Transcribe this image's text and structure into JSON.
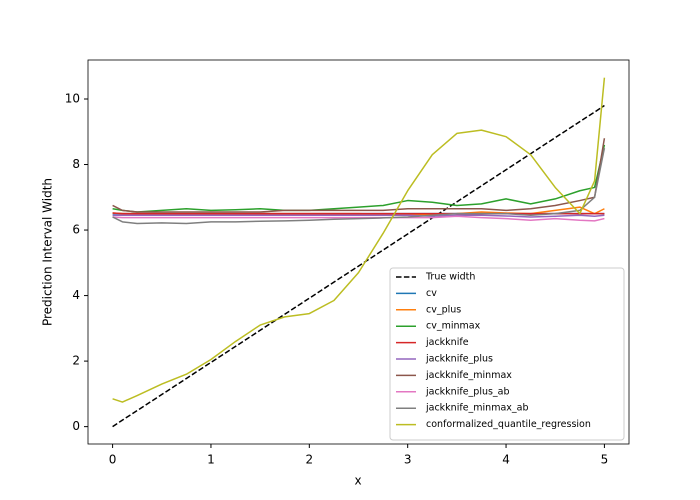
{
  "chart_data": {
    "type": "line",
    "xlabel": "x",
    "ylabel": "Prediction Interval Width",
    "x": [
      0,
      0.1,
      0.25,
      0.5,
      0.75,
      1,
      1.25,
      1.5,
      1.75,
      2,
      2.25,
      2.5,
      2.75,
      3,
      3.25,
      3.5,
      3.75,
      4,
      4.25,
      4.5,
      4.75,
      4.9,
      5
    ],
    "xlim": [
      -0.25,
      5.25
    ],
    "xticks": [
      0,
      1,
      2,
      3,
      4,
      5
    ],
    "ylim": [
      -0.53,
      11.19
    ],
    "yticks": [
      0,
      2,
      4,
      6,
      8,
      10
    ],
    "legend": "lower right",
    "series": [
      {
        "name": "True width",
        "color": "#000000",
        "linestyle": "dashed",
        "values": [
          0,
          0.2,
          0.49,
          0.98,
          1.47,
          1.96,
          2.45,
          2.94,
          3.43,
          3.92,
          4.41,
          4.9,
          5.39,
          5.88,
          6.37,
          6.86,
          7.35,
          7.84,
          8.33,
          8.82,
          9.31,
          9.6,
          9.8
        ]
      },
      {
        "name": "cv",
        "color": "#1f77b4",
        "values": [
          6.5,
          6.5,
          6.5,
          6.5,
          6.5,
          6.5,
          6.5,
          6.5,
          6.5,
          6.5,
          6.5,
          6.5,
          6.5,
          6.5,
          6.5,
          6.5,
          6.5,
          6.5,
          6.5,
          6.5,
          6.5,
          6.5,
          6.5
        ]
      },
      {
        "name": "cv_plus",
        "color": "#ff7f0e",
        "values": [
          6.52,
          6.5,
          6.5,
          6.5,
          6.5,
          6.5,
          6.5,
          6.5,
          6.5,
          6.5,
          6.5,
          6.5,
          6.48,
          6.47,
          6.48,
          6.5,
          6.55,
          6.52,
          6.5,
          6.6,
          6.7,
          6.5,
          6.65
        ]
      },
      {
        "name": "cv_minmax",
        "color": "#2ca02c",
        "values": [
          6.65,
          6.6,
          6.55,
          6.6,
          6.65,
          6.6,
          6.62,
          6.65,
          6.6,
          6.6,
          6.65,
          6.7,
          6.75,
          6.9,
          6.85,
          6.75,
          6.8,
          6.95,
          6.8,
          6.95,
          7.2,
          7.3,
          8.6
        ]
      },
      {
        "name": "jackknife",
        "color": "#d62728",
        "values": [
          6.52,
          6.5,
          6.5,
          6.5,
          6.5,
          6.5,
          6.5,
          6.5,
          6.5,
          6.5,
          6.5,
          6.5,
          6.5,
          6.5,
          6.5,
          6.5,
          6.5,
          6.5,
          6.5,
          6.5,
          6.5,
          6.5,
          6.5
        ]
      },
      {
        "name": "jackknife_plus",
        "color": "#9467bd",
        "values": [
          6.45,
          6.45,
          6.45,
          6.45,
          6.45,
          6.45,
          6.45,
          6.45,
          6.45,
          6.45,
          6.45,
          6.45,
          6.45,
          6.45,
          6.42,
          6.45,
          6.45,
          6.43,
          6.4,
          6.42,
          6.45,
          6.42,
          6.45
        ]
      },
      {
        "name": "jackknife_minmax",
        "color": "#8c564b",
        "values": [
          6.75,
          6.6,
          6.55,
          6.55,
          6.55,
          6.55,
          6.55,
          6.55,
          6.6,
          6.6,
          6.6,
          6.6,
          6.6,
          6.65,
          6.65,
          6.65,
          6.65,
          6.6,
          6.65,
          6.75,
          6.9,
          7.0,
          8.8
        ]
      },
      {
        "name": "jackknife_plus_ab",
        "color": "#e377c2",
        "values": [
          6.4,
          6.38,
          6.38,
          6.38,
          6.38,
          6.38,
          6.38,
          6.38,
          6.38,
          6.38,
          6.38,
          6.38,
          6.38,
          6.38,
          6.38,
          6.42,
          6.38,
          6.35,
          6.3,
          6.35,
          6.3,
          6.28,
          6.35
        ]
      },
      {
        "name": "jackknife_minmax_ab",
        "color": "#7f7f7f",
        "values": [
          6.4,
          6.25,
          6.2,
          6.22,
          6.2,
          6.25,
          6.25,
          6.27,
          6.28,
          6.3,
          6.33,
          6.35,
          6.37,
          6.4,
          6.45,
          6.5,
          6.5,
          6.5,
          6.45,
          6.5,
          6.6,
          7.0,
          8.5
        ]
      },
      {
        "name": "conformalized_quantile_regression",
        "color": "#bcbd22",
        "values": [
          0.85,
          0.75,
          0.95,
          1.3,
          1.6,
          2.05,
          2.6,
          3.1,
          3.35,
          3.45,
          3.85,
          4.7,
          5.9,
          7.2,
          8.3,
          8.95,
          9.05,
          8.85,
          8.3,
          7.3,
          6.5,
          7.5,
          10.65
        ]
      }
    ]
  }
}
